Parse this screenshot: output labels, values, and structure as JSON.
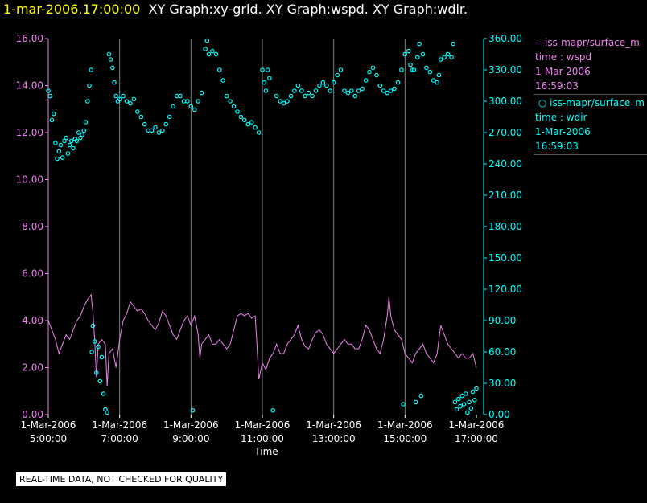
{
  "header": {
    "timestamp": "1-mar-2006,17:00:00",
    "graph_titles": "XY Graph:xy-grid.  XY Graph:wspd.  XY Graph:wdir."
  },
  "legend": {
    "series1": {
      "name": "iss-mapr/surface_m",
      "line": "time : wspd",
      "date": "1-Mar-2006",
      "time": "16:59:03"
    },
    "series2": {
      "name": "iss-mapr/surface_m",
      "line": "time : wdir",
      "date": "1-Mar-2006",
      "time": "16:59:03"
    }
  },
  "footer": {
    "qc_note": "REAL-TIME DATA, NOT CHECKED FOR QUALITY"
  },
  "colors": {
    "wspd": "#ee82ee",
    "wdir": "#00ffff",
    "grid": "#808080",
    "axis_text": "#ffffff"
  },
  "chart_data": {
    "type": "line",
    "xlabel": "Time",
    "x_range_hours": [
      5.0,
      17.0
    ],
    "x_ticks": [
      {
        "hour": 5,
        "date": "1-Mar-2006",
        "time": "5:00:00"
      },
      {
        "hour": 7,
        "date": "1-Mar-2006",
        "time": "7:00:00"
      },
      {
        "hour": 9,
        "date": "1-Mar-2006",
        "time": "9:00:00"
      },
      {
        "hour": 11,
        "date": "1-Mar-2006",
        "time": "11:00:00"
      },
      {
        "hour": 13,
        "date": "1-Mar-2006",
        "time": "13:00:00"
      },
      {
        "hour": 15,
        "date": "1-Mar-2006",
        "time": "15:00:00"
      },
      {
        "hour": 17,
        "date": "1-Mar-2006",
        "time": "17:00:00"
      }
    ],
    "y_left": {
      "label": "wspd",
      "range": [
        0,
        16
      ],
      "ticks": [
        "0.00",
        "2.00",
        "4.00",
        "6.00",
        "8.00",
        "10.00",
        "12.00",
        "14.00",
        "16.00"
      ]
    },
    "y_right": {
      "label": "wdir",
      "range": [
        0,
        360
      ],
      "ticks": [
        "0.00",
        "30.00",
        "60.00",
        "90.00",
        "120.00",
        "150.00",
        "180.00",
        "210.00",
        "240.00",
        "270.00",
        "300.00",
        "330.00",
        "360.00"
      ]
    },
    "series": [
      {
        "name": "wspd",
        "style": "line",
        "axis": "left",
        "points": [
          [
            5.0,
            4.0
          ],
          [
            5.1,
            3.6
          ],
          [
            5.2,
            3.2
          ],
          [
            5.3,
            2.6
          ],
          [
            5.4,
            3.0
          ],
          [
            5.5,
            3.4
          ],
          [
            5.6,
            3.2
          ],
          [
            5.7,
            3.6
          ],
          [
            5.8,
            4.0
          ],
          [
            5.9,
            4.2
          ],
          [
            6.0,
            4.6
          ],
          [
            6.1,
            4.9
          ],
          [
            6.2,
            5.1
          ],
          [
            6.25,
            4.4
          ],
          [
            6.3,
            3.2
          ],
          [
            6.35,
            1.6
          ],
          [
            6.4,
            3.0
          ],
          [
            6.5,
            3.2
          ],
          [
            6.6,
            3.0
          ],
          [
            6.65,
            1.2
          ],
          [
            6.7,
            2.6
          ],
          [
            6.8,
            2.8
          ],
          [
            6.9,
            2.0
          ],
          [
            7.0,
            3.2
          ],
          [
            7.1,
            4.0
          ],
          [
            7.2,
            4.3
          ],
          [
            7.3,
            4.8
          ],
          [
            7.4,
            4.6
          ],
          [
            7.5,
            4.4
          ],
          [
            7.6,
            4.5
          ],
          [
            7.7,
            4.3
          ],
          [
            7.8,
            4.0
          ],
          [
            7.9,
            3.8
          ],
          [
            8.0,
            3.6
          ],
          [
            8.1,
            3.9
          ],
          [
            8.2,
            4.4
          ],
          [
            8.3,
            4.2
          ],
          [
            8.4,
            3.8
          ],
          [
            8.5,
            3.4
          ],
          [
            8.6,
            3.2
          ],
          [
            8.7,
            3.6
          ],
          [
            8.8,
            4.0
          ],
          [
            8.9,
            4.2
          ],
          [
            9.0,
            3.8
          ],
          [
            9.1,
            4.2
          ],
          [
            9.2,
            3.4
          ],
          [
            9.25,
            2.4
          ],
          [
            9.3,
            3.0
          ],
          [
            9.4,
            3.2
          ],
          [
            9.5,
            3.4
          ],
          [
            9.6,
            3.0
          ],
          [
            9.7,
            3.0
          ],
          [
            9.8,
            3.2
          ],
          [
            9.9,
            3.0
          ],
          [
            10.0,
            2.8
          ],
          [
            10.1,
            3.0
          ],
          [
            10.2,
            3.6
          ],
          [
            10.3,
            4.2
          ],
          [
            10.4,
            4.3
          ],
          [
            10.5,
            4.2
          ],
          [
            10.6,
            4.3
          ],
          [
            10.7,
            4.1
          ],
          [
            10.8,
            4.2
          ],
          [
            10.85,
            3.0
          ],
          [
            10.9,
            1.5
          ],
          [
            11.0,
            2.2
          ],
          [
            11.1,
            1.9
          ],
          [
            11.2,
            2.4
          ],
          [
            11.3,
            2.6
          ],
          [
            11.4,
            3.0
          ],
          [
            11.5,
            2.6
          ],
          [
            11.6,
            2.6
          ],
          [
            11.7,
            3.0
          ],
          [
            11.8,
            3.2
          ],
          [
            11.9,
            3.4
          ],
          [
            12.0,
            3.8
          ],
          [
            12.1,
            3.2
          ],
          [
            12.2,
            2.9
          ],
          [
            12.3,
            2.8
          ],
          [
            12.4,
            3.2
          ],
          [
            12.5,
            3.5
          ],
          [
            12.6,
            3.6
          ],
          [
            12.7,
            3.4
          ],
          [
            12.8,
            3.0
          ],
          [
            12.9,
            2.8
          ],
          [
            13.0,
            2.6
          ],
          [
            13.1,
            2.8
          ],
          [
            13.2,
            3.0
          ],
          [
            13.3,
            3.2
          ],
          [
            13.4,
            3.0
          ],
          [
            13.5,
            3.0
          ],
          [
            13.6,
            2.8
          ],
          [
            13.7,
            2.8
          ],
          [
            13.8,
            3.2
          ],
          [
            13.9,
            3.8
          ],
          [
            14.0,
            3.6
          ],
          [
            14.1,
            3.2
          ],
          [
            14.2,
            2.8
          ],
          [
            14.3,
            2.6
          ],
          [
            14.4,
            3.2
          ],
          [
            14.5,
            4.2
          ],
          [
            14.55,
            5.0
          ],
          [
            14.6,
            4.2
          ],
          [
            14.7,
            3.6
          ],
          [
            14.8,
            3.4
          ],
          [
            14.9,
            3.2
          ],
          [
            15.0,
            2.6
          ],
          [
            15.1,
            2.4
          ],
          [
            15.2,
            2.2
          ],
          [
            15.3,
            2.6
          ],
          [
            15.4,
            2.8
          ],
          [
            15.5,
            3.0
          ],
          [
            15.6,
            2.6
          ],
          [
            15.7,
            2.4
          ],
          [
            15.8,
            2.2
          ],
          [
            15.9,
            2.6
          ],
          [
            16.0,
            3.8
          ],
          [
            16.1,
            3.4
          ],
          [
            16.2,
            3.0
          ],
          [
            16.3,
            2.8
          ],
          [
            16.4,
            2.6
          ],
          [
            16.5,
            2.4
          ],
          [
            16.6,
            2.6
          ],
          [
            16.7,
            2.4
          ],
          [
            16.8,
            2.4
          ],
          [
            16.9,
            2.6
          ],
          [
            17.0,
            2.0
          ]
        ]
      },
      {
        "name": "wdir",
        "style": "points",
        "axis": "right",
        "points": [
          [
            5.0,
            310
          ],
          [
            5.05,
            305
          ],
          [
            5.1,
            282
          ],
          [
            5.15,
            288
          ],
          [
            5.2,
            260
          ],
          [
            5.25,
            245
          ],
          [
            5.3,
            252
          ],
          [
            5.35,
            258
          ],
          [
            5.4,
            246
          ],
          [
            5.45,
            262
          ],
          [
            5.5,
            265
          ],
          [
            5.55,
            250
          ],
          [
            5.6,
            258
          ],
          [
            5.65,
            262
          ],
          [
            5.7,
            255
          ],
          [
            5.75,
            264
          ],
          [
            5.8,
            262
          ],
          [
            5.85,
            270
          ],
          [
            5.9,
            265
          ],
          [
            5.95,
            268
          ],
          [
            6.0,
            272
          ],
          [
            6.05,
            280
          ],
          [
            6.1,
            300
          ],
          [
            6.15,
            315
          ],
          [
            6.2,
            330
          ],
          [
            6.22,
            60
          ],
          [
            6.25,
            85
          ],
          [
            6.3,
            70
          ],
          [
            6.35,
            40
          ],
          [
            6.4,
            65
          ],
          [
            6.45,
            32
          ],
          [
            6.5,
            55
          ],
          [
            6.55,
            20
          ],
          [
            6.6,
            5
          ],
          [
            6.65,
            2
          ],
          [
            6.7,
            345
          ],
          [
            6.75,
            340
          ],
          [
            6.8,
            332
          ],
          [
            6.85,
            318
          ],
          [
            6.9,
            305
          ],
          [
            6.95,
            300
          ],
          [
            7.0,
            302
          ],
          [
            7.1,
            305
          ],
          [
            7.2,
            300
          ],
          [
            7.3,
            298
          ],
          [
            7.4,
            302
          ],
          [
            7.5,
            290
          ],
          [
            7.6,
            285
          ],
          [
            7.7,
            278
          ],
          [
            7.8,
            272
          ],
          [
            7.9,
            272
          ],
          [
            8.0,
            275
          ],
          [
            8.1,
            270
          ],
          [
            8.2,
            272
          ],
          [
            8.3,
            278
          ],
          [
            8.4,
            285
          ],
          [
            8.5,
            295
          ],
          [
            8.6,
            305
          ],
          [
            8.7,
            305
          ],
          [
            8.8,
            300
          ],
          [
            8.9,
            300
          ],
          [
            9.0,
            295
          ],
          [
            9.05,
            4
          ],
          [
            9.1,
            292
          ],
          [
            9.2,
            300
          ],
          [
            9.3,
            308
          ],
          [
            9.4,
            350
          ],
          [
            9.45,
            358
          ],
          [
            9.5,
            345
          ],
          [
            9.6,
            348
          ],
          [
            9.7,
            345
          ],
          [
            9.8,
            330
          ],
          [
            9.9,
            320
          ],
          [
            10.0,
            305
          ],
          [
            10.1,
            300
          ],
          [
            10.2,
            295
          ],
          [
            10.3,
            290
          ],
          [
            10.4,
            285
          ],
          [
            10.5,
            282
          ],
          [
            10.6,
            278
          ],
          [
            10.7,
            280
          ],
          [
            10.8,
            275
          ],
          [
            10.9,
            270
          ],
          [
            11.0,
            330
          ],
          [
            11.05,
            318
          ],
          [
            11.1,
            310
          ],
          [
            11.15,
            330
          ],
          [
            11.2,
            322
          ],
          [
            11.3,
            4
          ],
          [
            11.4,
            305
          ],
          [
            11.5,
            300
          ],
          [
            11.6,
            298
          ],
          [
            11.7,
            300
          ],
          [
            11.8,
            305
          ],
          [
            11.9,
            310
          ],
          [
            12.0,
            315
          ],
          [
            12.1,
            310
          ],
          [
            12.2,
            305
          ],
          [
            12.3,
            308
          ],
          [
            12.4,
            305
          ],
          [
            12.5,
            310
          ],
          [
            12.6,
            315
          ],
          [
            12.7,
            318
          ],
          [
            12.8,
            315
          ],
          [
            12.9,
            310
          ],
          [
            13.0,
            318
          ],
          [
            13.1,
            325
          ],
          [
            13.2,
            330
          ],
          [
            13.3,
            310
          ],
          [
            13.4,
            308
          ],
          [
            13.5,
            310
          ],
          [
            13.6,
            305
          ],
          [
            13.7,
            310
          ],
          [
            13.8,
            312
          ],
          [
            13.9,
            320
          ],
          [
            14.0,
            328
          ],
          [
            14.1,
            332
          ],
          [
            14.2,
            325
          ],
          [
            14.3,
            315
          ],
          [
            14.4,
            310
          ],
          [
            14.5,
            308
          ],
          [
            14.6,
            310
          ],
          [
            14.7,
            312
          ],
          [
            14.8,
            318
          ],
          [
            14.9,
            330
          ],
          [
            14.95,
            10
          ],
          [
            15.0,
            345
          ],
          [
            15.1,
            348
          ],
          [
            15.15,
            335
          ],
          [
            15.2,
            330
          ],
          [
            15.25,
            330
          ],
          [
            15.3,
            12
          ],
          [
            15.35,
            342
          ],
          [
            15.4,
            355
          ],
          [
            15.45,
            18
          ],
          [
            15.5,
            345
          ],
          [
            15.6,
            332
          ],
          [
            15.7,
            328
          ],
          [
            15.8,
            320
          ],
          [
            15.9,
            318
          ],
          [
            15.95,
            325
          ],
          [
            16.0,
            340
          ],
          [
            16.1,
            342
          ],
          [
            16.2,
            345
          ],
          [
            16.3,
            342
          ],
          [
            16.35,
            355
          ],
          [
            16.4,
            12
          ],
          [
            16.45,
            5
          ],
          [
            16.5,
            15
          ],
          [
            16.55,
            8
          ],
          [
            16.6,
            18
          ],
          [
            16.65,
            10
          ],
          [
            16.7,
            20
          ],
          [
            16.75,
            2
          ],
          [
            16.8,
            12
          ],
          [
            16.85,
            6
          ],
          [
            16.9,
            22
          ],
          [
            16.95,
            14
          ],
          [
            17.0,
            25
          ]
        ]
      }
    ]
  }
}
